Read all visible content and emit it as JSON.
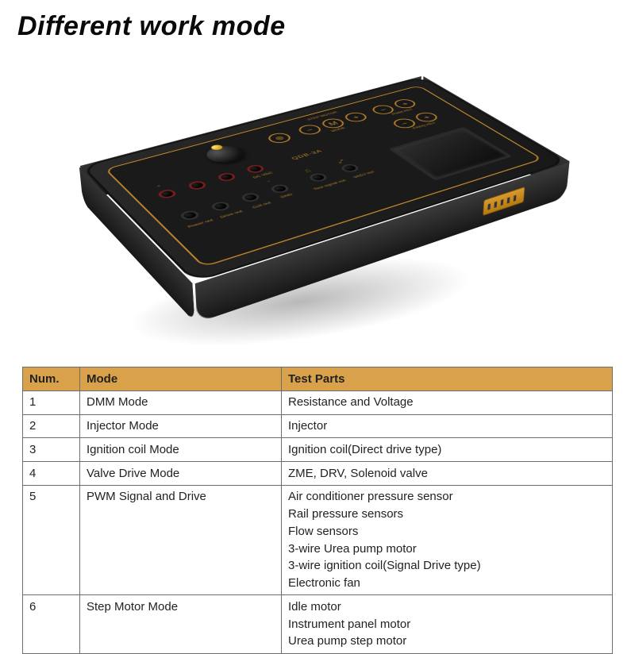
{
  "title": "Different work mode",
  "device": {
    "model": "QDB-3A",
    "labels": {
      "step_motor": "STEP MOTOR",
      "mode": "MODE",
      "pwm_adj": "PWM ADJ",
      "freq_adj": "FREQ ADJ",
      "dc_vdc": "DC VDC",
      "gnd": "GND",
      "power_out": "Power out",
      "drive_out": "Drive out",
      "coil_out": "Coil out",
      "test_signal_out": "Test signal out",
      "vadj_out": "VADJ out"
    },
    "colors": {
      "body": "#1f1f1f",
      "accent": "#c58a2e",
      "jack_red": "#7a1f1f",
      "jack_black": "#333333",
      "side_port": "#d89a2e"
    }
  },
  "table": {
    "headers": {
      "num": "Num.",
      "mode": "Mode",
      "parts": "Test Parts"
    },
    "header_bg": "#d9a24a",
    "border_color": "#6e6e6e",
    "fontsize": 15,
    "rows": [
      {
        "num": "1",
        "mode": "DMM Mode",
        "parts": [
          "Resistance and Voltage"
        ]
      },
      {
        "num": "2",
        "mode": "Injector Mode",
        "parts": [
          "Injector"
        ]
      },
      {
        "num": "3",
        "mode": "Ignition coil Mode",
        "parts": [
          "Ignition coil(Direct drive type)"
        ]
      },
      {
        "num": "4",
        "mode": "Valve Drive Mode",
        "parts": [
          "ZME, DRV, Solenoid valve"
        ]
      },
      {
        "num": "5",
        "mode": "PWM Signal and Drive",
        "parts": [
          "Air conditioner pressure sensor",
          "Rail pressure sensors",
          "Flow sensors",
          "3-wire Urea pump motor",
          "3-wire ignition coil(Signal Drive type)",
          "Electronic fan"
        ]
      },
      {
        "num": "6",
        "mode": "Step Motor Mode",
        "parts": [
          "Idle motor",
          "Instrument panel motor",
          "Urea pump step motor"
        ]
      }
    ]
  }
}
